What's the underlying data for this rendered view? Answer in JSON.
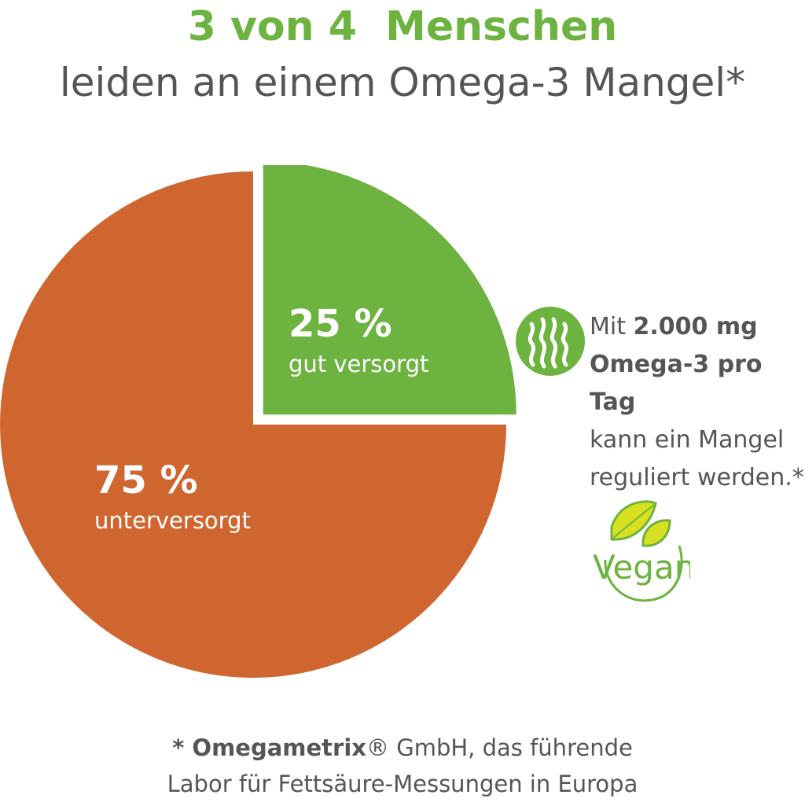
{
  "header": {
    "title": "3 von 4  Menschen",
    "subtitle": "leiden an einem Omega-3 Mangel*"
  },
  "chart_data": {
    "type": "pie",
    "slices": [
      {
        "label": "gut versorgt",
        "value": 25,
        "value_label": "25 %",
        "color": "#6db33f",
        "exploded": true
      },
      {
        "label": "unterversorgt",
        "value": 75,
        "value_label": "75 %",
        "color": "#cf6630"
      }
    ]
  },
  "note": {
    "part1": "Mit ",
    "bold1": "2.000 mg",
    "bold2": "Omega-3 pro Tag",
    "part2": "kann ein Mangel",
    "part3": "reguliert werden.*",
    "icon": "seaweed-icon"
  },
  "badge": {
    "text": "Vegan",
    "icon": "leaf-icon"
  },
  "footnote": {
    "star": "* ",
    "brand": "Omegametrix",
    "reg": "® GmbH, das führende",
    "line2": "Labor für Fettsäure-Messungen in Europa"
  },
  "colors": {
    "green": "#6db33f",
    "orange": "#cf6630",
    "text": "#555555"
  }
}
